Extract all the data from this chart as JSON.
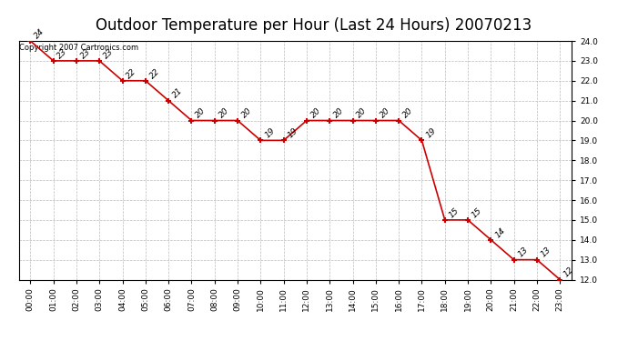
{
  "title": "Outdoor Temperature per Hour (Last 24 Hours) 20070213",
  "copyright_text": "Copyright 2007 Cartronics.com",
  "hours": [
    0,
    1,
    2,
    3,
    4,
    5,
    6,
    7,
    8,
    9,
    10,
    11,
    12,
    13,
    14,
    15,
    16,
    17,
    18,
    19,
    20,
    21,
    22,
    23
  ],
  "hour_labels": [
    "00:00",
    "01:00",
    "02:00",
    "03:00",
    "04:00",
    "05:00",
    "06:00",
    "07:00",
    "08:00",
    "09:00",
    "10:00",
    "11:00",
    "12:00",
    "13:00",
    "14:00",
    "15:00",
    "16:00",
    "17:00",
    "18:00",
    "19:00",
    "20:00",
    "21:00",
    "22:00",
    "23:00"
  ],
  "temperatures": [
    24,
    23,
    23,
    23,
    22,
    22,
    21,
    20,
    20,
    20,
    19,
    19,
    20,
    20,
    20,
    20,
    20,
    19,
    15,
    15,
    14,
    13,
    13,
    12
  ],
  "ylim_min": 12.0,
  "ylim_max": 24.0,
  "yticks": [
    12.0,
    13.0,
    14.0,
    15.0,
    16.0,
    17.0,
    18.0,
    19.0,
    20.0,
    21.0,
    22.0,
    23.0,
    24.0
  ],
  "line_color": "#cc0000",
  "marker_color": "#cc0000",
  "bg_color": "#ffffff",
  "plot_bg_color": "#ffffff",
  "grid_color": "#bbbbbb",
  "title_fontsize": 12,
  "tick_fontsize": 6.5,
  "annotation_fontsize": 6.5,
  "copyright_fontsize": 6
}
